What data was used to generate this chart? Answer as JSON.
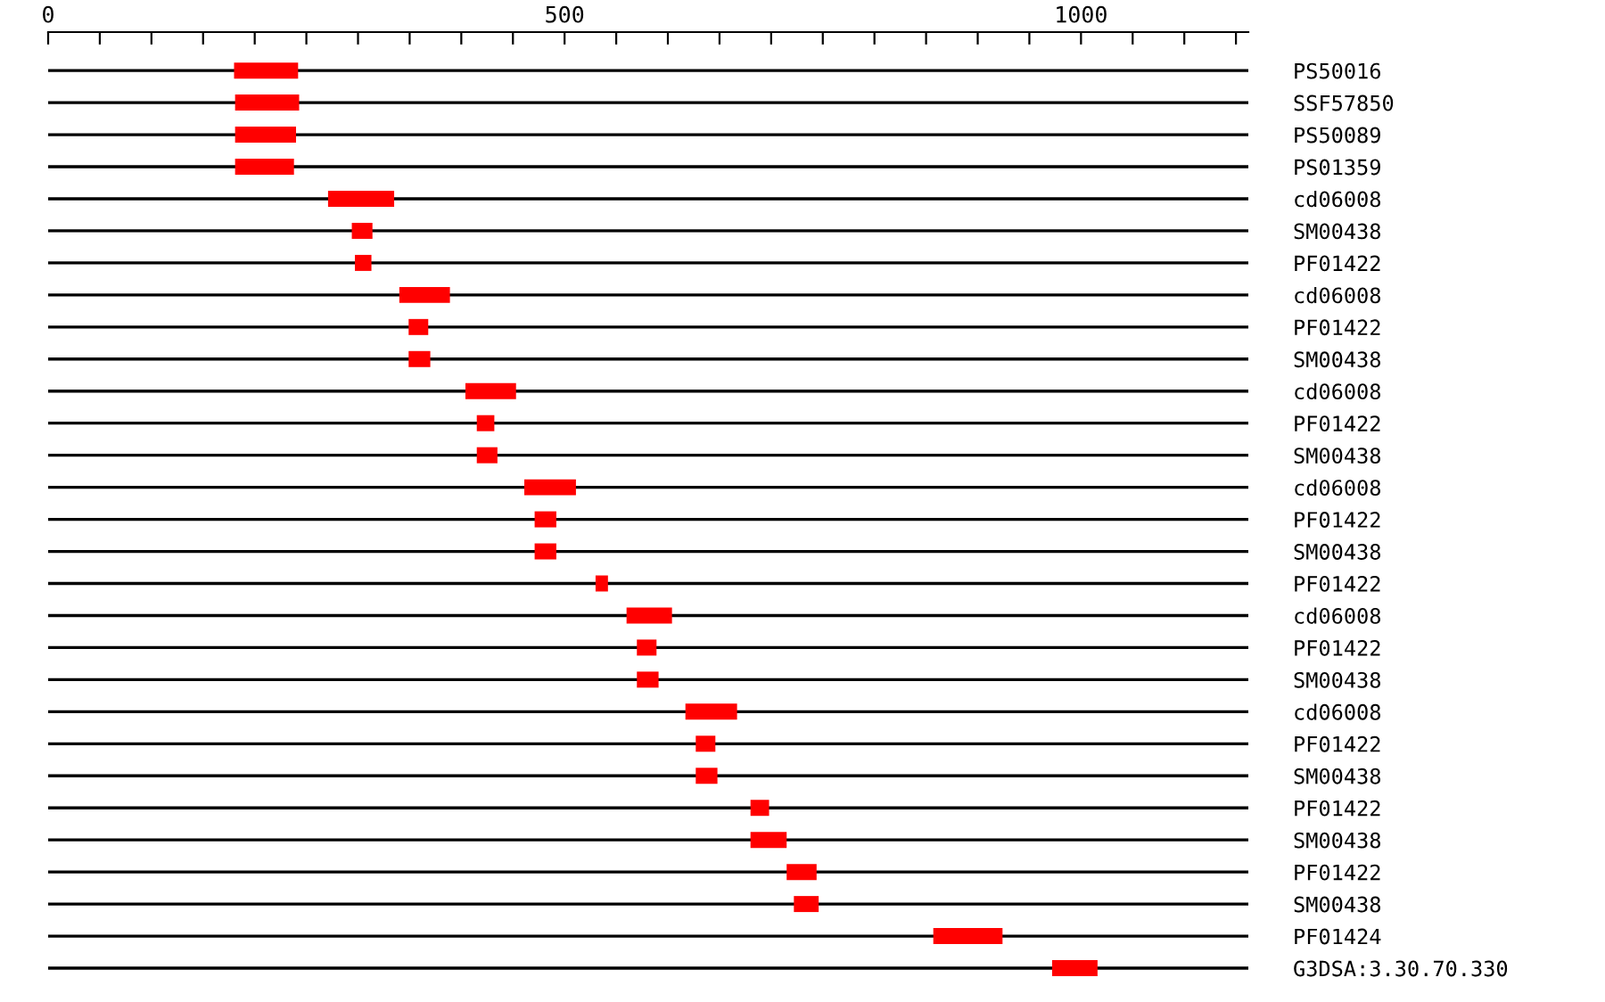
{
  "chart_data": {
    "type": "bar",
    "orientation": "horizontal",
    "color": "#ff0000",
    "grid": "y",
    "categories": [
      "PS50016",
      "SSF57850",
      "PS50089",
      "PS01359",
      "cd06008",
      "SM00438",
      "PF01422",
      "cd06008",
      "PF01422",
      "SM00438",
      "cd06008",
      "PF01422",
      "SM00438",
      "cd06008",
      "PF01422",
      "SM00438",
      "PF01422",
      "cd06008",
      "PF01422",
      "SM00438",
      "cd06008",
      "PF01422",
      "SM00438",
      "PF01422",
      "SM00438",
      "PF01422",
      "SM00438",
      "PF01424",
      "G3DSA:3.30.70.330"
    ],
    "base": [
      180,
      181,
      181,
      181,
      271,
      294,
      297,
      340,
      349,
      349,
      404,
      415,
      415,
      461,
      471,
      471,
      530,
      560,
      570,
      570,
      617,
      627,
      627,
      680,
      680,
      715,
      722,
      857,
      972
    ],
    "values": [
      62,
      62,
      59,
      57,
      64,
      20,
      16,
      49,
      19,
      21,
      49,
      17,
      20,
      50,
      21,
      21,
      12,
      44,
      19,
      21,
      50,
      19,
      21,
      18,
      35,
      29,
      24,
      67,
      44
    ],
    "xlim": [
      0,
      1162
    ],
    "xticks": [
      0,
      {
        "value": 50,
        "label": null
      },
      {
        "value": 100,
        "label": null
      },
      {
        "value": 150,
        "label": null
      },
      {
        "value": 200,
        "label": null
      },
      {
        "value": 250,
        "label": null
      },
      {
        "value": 300,
        "label": null
      },
      {
        "value": 350,
        "label": null
      },
      {
        "value": 400,
        "label": null
      },
      {
        "value": 450,
        "label": null
      },
      500,
      {
        "value": 550,
        "label": null
      },
      {
        "value": 600,
        "label": null
      },
      {
        "value": 650,
        "label": null
      },
      {
        "value": 700,
        "label": null
      },
      {
        "value": 750,
        "label": null
      },
      {
        "value": 800,
        "label": null
      },
      {
        "value": 850,
        "label": null
      },
      {
        "value": 900,
        "label": null
      },
      {
        "value": 950,
        "label": null
      },
      1000,
      {
        "value": 1050,
        "label": null
      },
      {
        "value": 1100,
        "label": null
      },
      {
        "value": 1150,
        "label": null
      }
    ]
  }
}
